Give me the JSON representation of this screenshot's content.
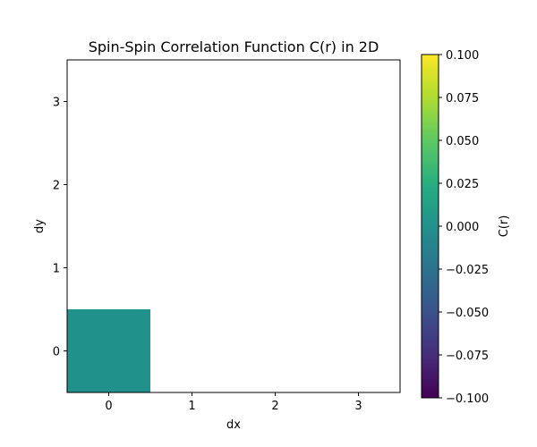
{
  "chart_data": {
    "type": "heatmap",
    "title": "Spin-Spin Correlation Function C(r) in 2D",
    "xlabel": "dx",
    "ylabel": "dy",
    "x_ticks": [
      0,
      1,
      2,
      3
    ],
    "y_ticks": [
      0,
      1,
      2,
      3
    ],
    "xlim": [
      -0.5,
      3.5
    ],
    "ylim": [
      -0.5,
      3.5
    ],
    "cells": [
      {
        "dx": 0,
        "dy": 0,
        "value": 0.0
      }
    ],
    "colorbar": {
      "label": "C(r)",
      "min": -0.1,
      "max": 0.1,
      "ticks": [
        0.1,
        0.075,
        0.05,
        0.025,
        0.0,
        -0.025,
        -0.05,
        -0.075,
        -0.1
      ],
      "tick_labels": [
        "0.100",
        "0.075",
        "0.050",
        "0.025",
        "0.000",
        "−0.025",
        "−0.050",
        "−0.075",
        "−0.100"
      ],
      "colormap": "viridis"
    },
    "colors": {
      "cell": "#21918c",
      "frame": "#000000",
      "background": "#ffffff"
    }
  }
}
